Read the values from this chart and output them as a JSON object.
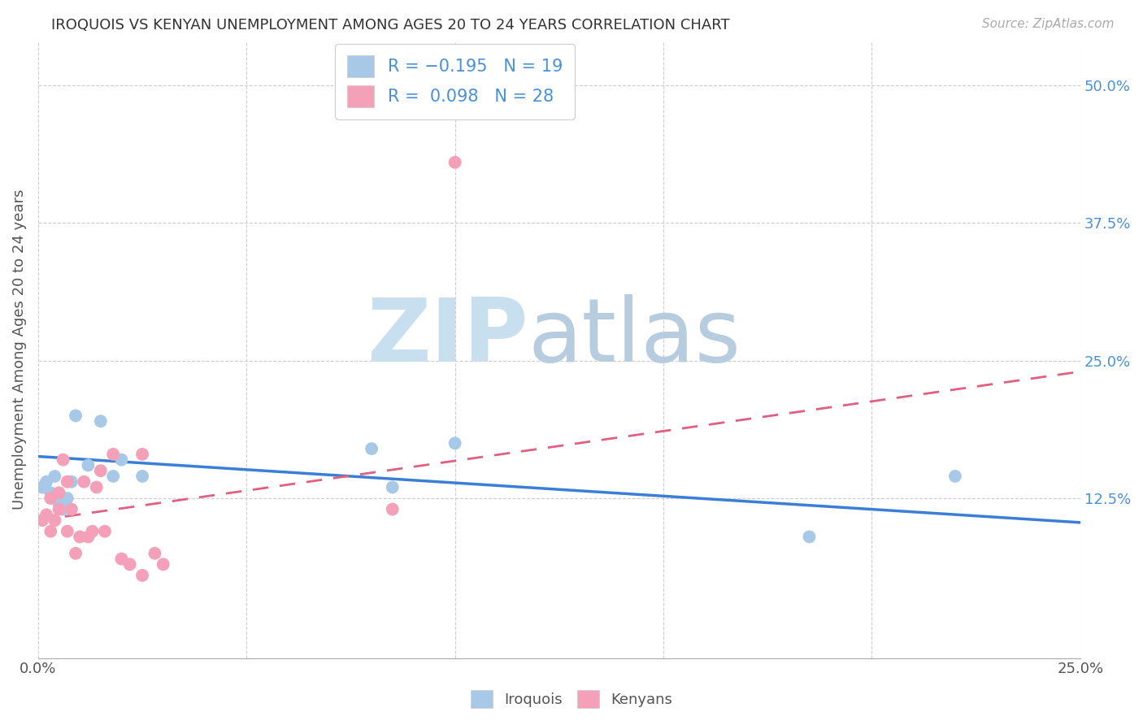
{
  "title": "IROQUOIS VS KENYAN UNEMPLOYMENT AMONG AGES 20 TO 24 YEARS CORRELATION CHART",
  "source": "Source: ZipAtlas.com",
  "ylabel": "Unemployment Among Ages 20 to 24 years",
  "xlim": [
    0.0,
    0.25
  ],
  "ylim": [
    -0.02,
    0.54
  ],
  "xticks": [
    0.0,
    0.05,
    0.1,
    0.15,
    0.2,
    0.25
  ],
  "yticks_right": [
    0.125,
    0.25,
    0.375,
    0.5
  ],
  "ytick_labels_right": [
    "12.5%",
    "25.0%",
    "37.5%",
    "50.0%"
  ],
  "iroquois_color": "#a8c8e8",
  "kenyan_color": "#f4a0b8",
  "iroquois_line_color": "#3a7fd5",
  "kenyan_line_color": "#e06080",
  "iroquois_x": [
    0.001,
    0.002,
    0.003,
    0.004,
    0.005,
    0.006,
    0.007,
    0.008,
    0.009,
    0.012,
    0.015,
    0.018,
    0.02,
    0.025,
    0.08,
    0.085,
    0.1,
    0.185,
    0.22
  ],
  "iroquois_y": [
    0.135,
    0.14,
    0.13,
    0.145,
    0.12,
    0.115,
    0.125,
    0.14,
    0.2,
    0.155,
    0.195,
    0.145,
    0.16,
    0.145,
    0.17,
    0.135,
    0.175,
    0.09,
    0.145
  ],
  "kenyan_x": [
    0.001,
    0.002,
    0.003,
    0.003,
    0.004,
    0.005,
    0.005,
    0.006,
    0.007,
    0.007,
    0.008,
    0.009,
    0.01,
    0.011,
    0.012,
    0.013,
    0.014,
    0.015,
    0.016,
    0.018,
    0.02,
    0.022,
    0.025,
    0.025,
    0.028,
    0.03,
    0.085,
    0.1
  ],
  "kenyan_y": [
    0.105,
    0.11,
    0.095,
    0.125,
    0.105,
    0.13,
    0.115,
    0.16,
    0.14,
    0.095,
    0.115,
    0.075,
    0.09,
    0.14,
    0.09,
    0.095,
    0.135,
    0.15,
    0.095,
    0.165,
    0.07,
    0.065,
    0.055,
    0.165,
    0.075,
    0.065,
    0.115,
    0.43
  ],
  "iroquois_trend_x": [
    0.0,
    0.25
  ],
  "iroquois_trend_y": [
    0.163,
    0.103
  ],
  "kenyan_trend_x": [
    0.0,
    0.25
  ],
  "kenyan_trend_y": [
    0.105,
    0.24
  ]
}
